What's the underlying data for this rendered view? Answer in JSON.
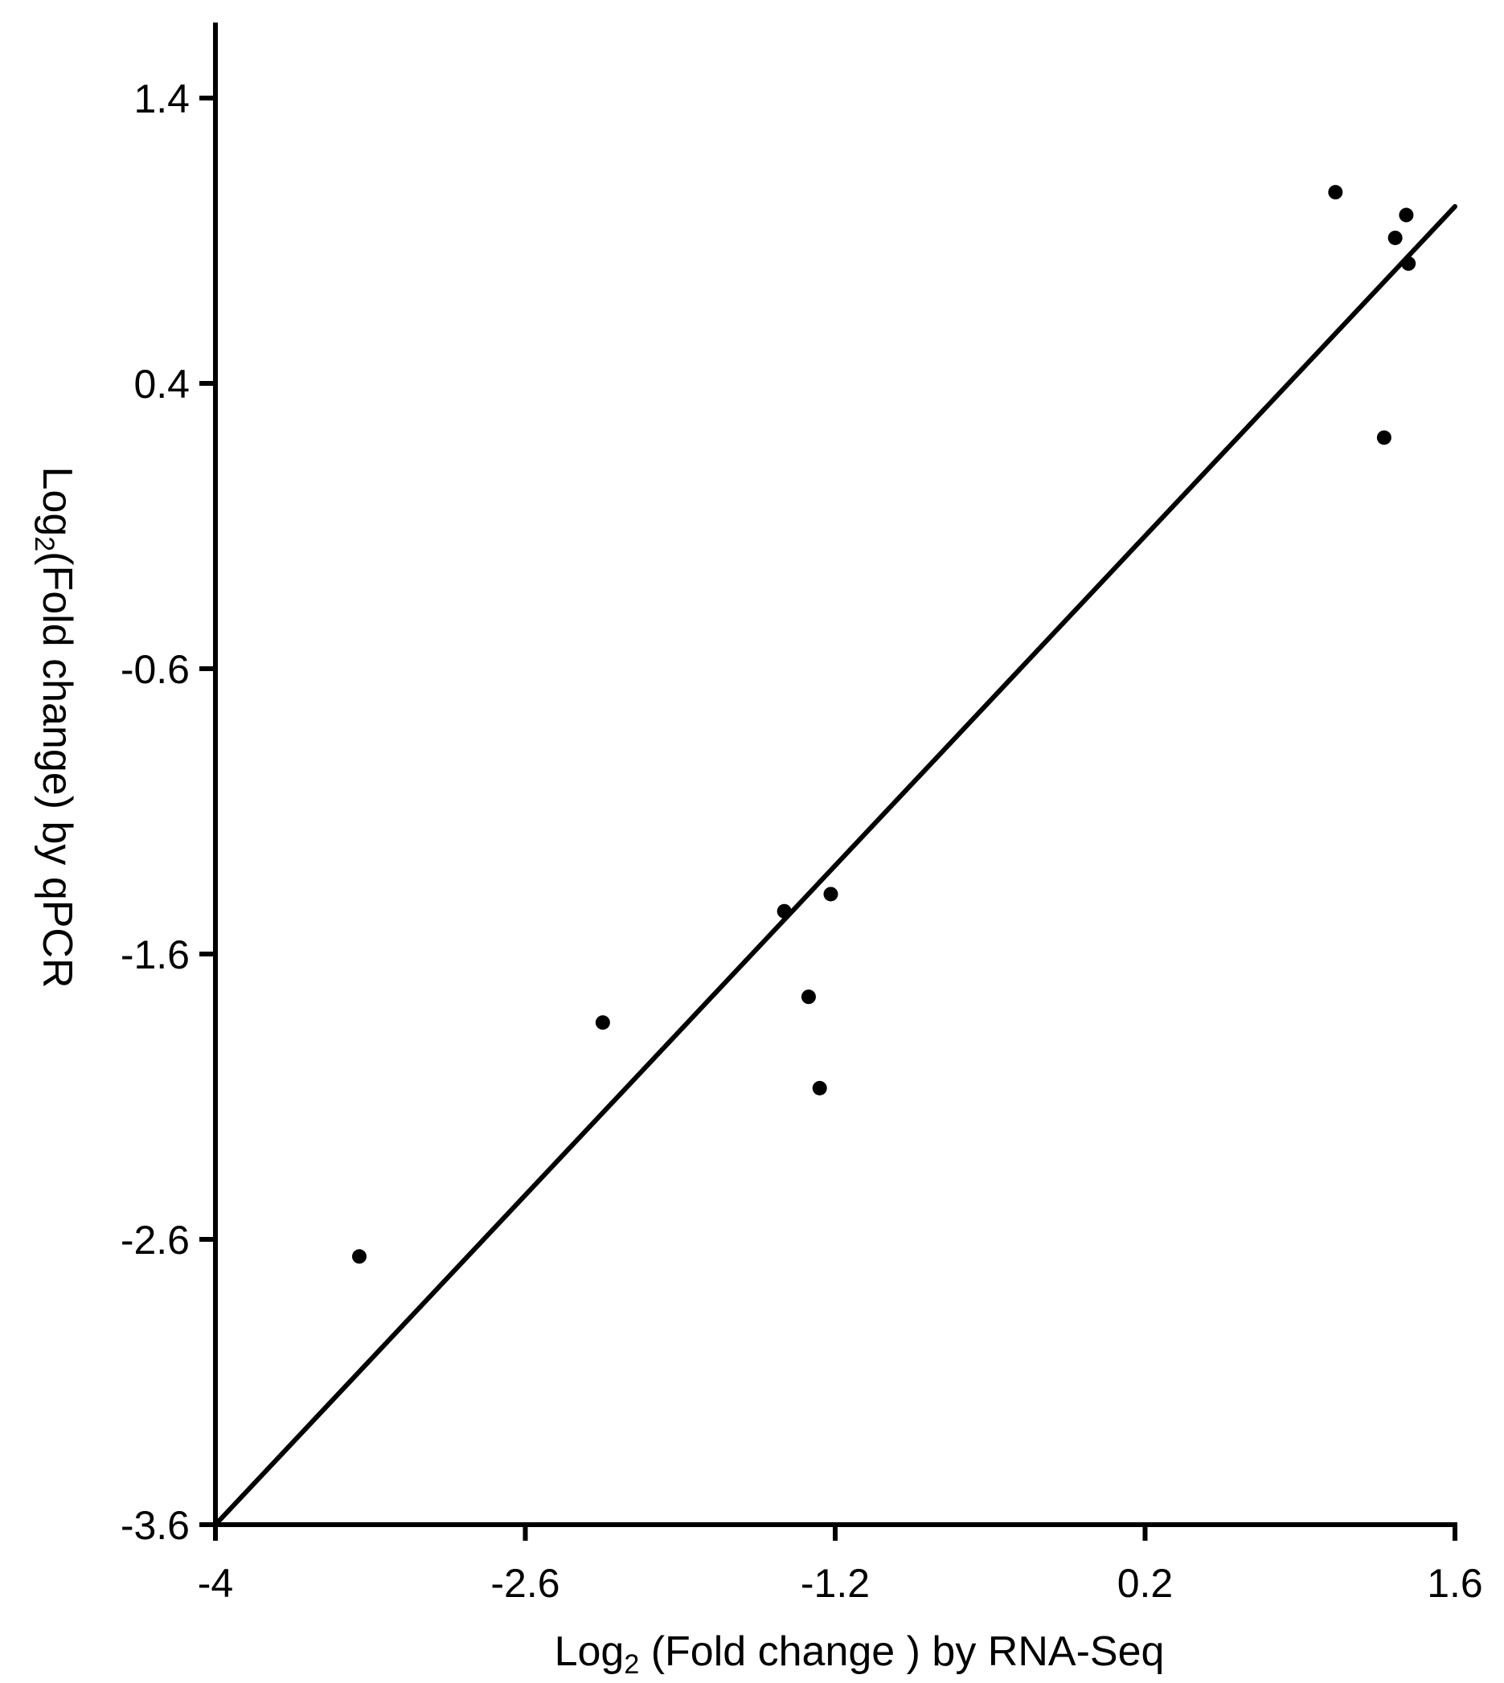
{
  "chart_data": {
    "type": "scatter",
    "title": "",
    "xlabel": {
      "prefix": "Log",
      "sub": "2",
      "suffix": " (Fold change ) by RNA-Seq"
    },
    "ylabel": {
      "prefix": "Log",
      "sub": "2",
      "suffix": "(Fold change) by qPCR"
    },
    "xlim": [
      -4,
      1.6
    ],
    "ylim": [
      -3.6,
      1.7
    ],
    "xticks": [
      -4,
      -2.6,
      -1.2,
      0.2,
      1.6
    ],
    "xtick_labels": [
      "-4",
      "-2.6",
      "-1.2",
      "0.2",
      "1.6"
    ],
    "yticks": [
      -3.6,
      -2.6,
      -1.6,
      -0.6,
      0.4,
      1.4
    ],
    "ytick_labels": [
      "-3.6",
      "-2.6",
      "-1.6",
      "-0.6",
      "0.4",
      "1.4"
    ],
    "grid": false,
    "legend": "none",
    "points": [
      {
        "x": 1.06,
        "y": 1.07
      },
      {
        "x": 1.38,
        "y": 0.99
      },
      {
        "x": 1.33,
        "y": 0.91
      },
      {
        "x": 1.39,
        "y": 0.82
      },
      {
        "x": 1.28,
        "y": 0.21
      },
      {
        "x": -1.22,
        "y": -1.39
      },
      {
        "x": -1.43,
        "y": -1.45
      },
      {
        "x": -1.32,
        "y": -1.75
      },
      {
        "x": -2.25,
        "y": -1.84
      },
      {
        "x": -1.27,
        "y": -2.07
      },
      {
        "x": -3.35,
        "y": -2.66
      }
    ],
    "fit_line": {
      "x": [
        -4,
        1.6
      ],
      "y": [
        -3.6,
        1.02
      ]
    },
    "colors": {
      "points": "#000000",
      "line": "#000000",
      "axes": "#000000"
    }
  }
}
